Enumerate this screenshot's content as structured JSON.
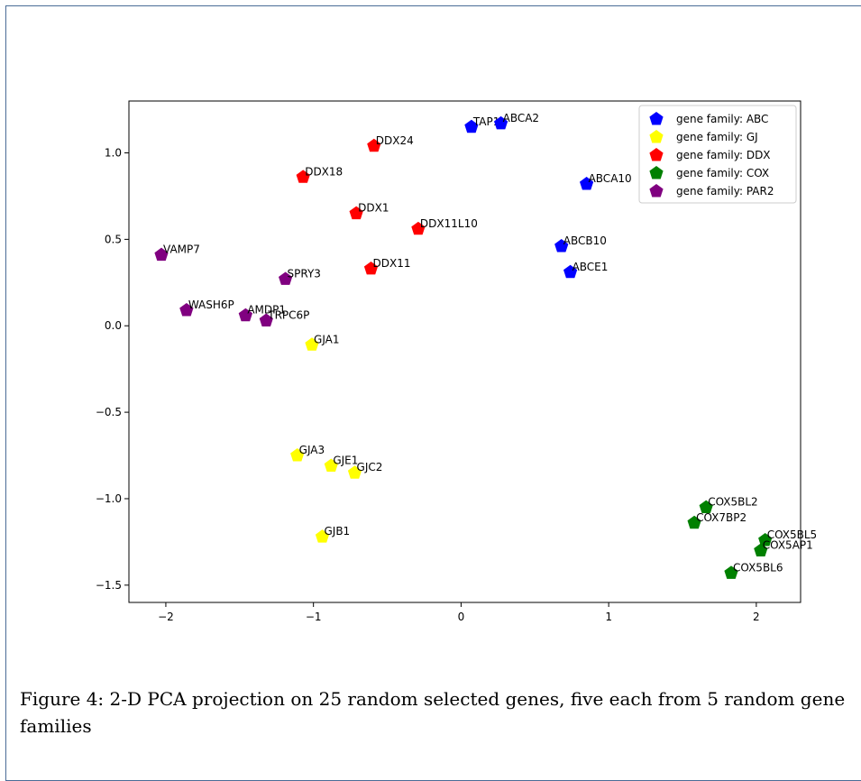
{
  "figure": {
    "caption": "Figure 4: 2-D PCA projection on 25 random selected genes, five each from 5 random gene families"
  },
  "chart_data": {
    "type": "scatter",
    "title": "",
    "xlabel": "",
    "ylabel": "",
    "xlim": [
      -2.25,
      2.3
    ],
    "ylim": [
      -1.6,
      1.3
    ],
    "xticks": [
      -2,
      -1,
      0,
      1,
      2
    ],
    "xtick_labels": [
      "−2",
      "−1",
      "0",
      "1",
      "2"
    ],
    "yticks": [
      -1.5,
      -1.0,
      -0.5,
      0.0,
      0.5,
      1.0
    ],
    "ytick_labels": [
      "−1.5",
      "−1.0",
      "−0.5",
      "0.0",
      "0.5",
      "1.0"
    ],
    "grid": false,
    "legend": "top-right",
    "marker": "pentagon",
    "series": [
      {
        "name": "gene family: ABC",
        "color": "#0000ff",
        "points": [
          {
            "label": "TAP1",
            "x": 0.07,
            "y": 1.15
          },
          {
            "label": "ABCA2",
            "x": 0.27,
            "y": 1.17
          },
          {
            "label": "ABCA10",
            "x": 0.85,
            "y": 0.82
          },
          {
            "label": "ABCB10",
            "x": 0.68,
            "y": 0.46
          },
          {
            "label": "ABCE1",
            "x": 0.74,
            "y": 0.31
          }
        ]
      },
      {
        "name": "gene family: GJ",
        "color": "#ffff00",
        "points": [
          {
            "label": "GJA1",
            "x": -1.01,
            "y": -0.11
          },
          {
            "label": "GJA3",
            "x": -1.11,
            "y": -0.75
          },
          {
            "label": "GJE1",
            "x": -0.88,
            "y": -0.81
          },
          {
            "label": "GJC2",
            "x": -0.72,
            "y": -0.85
          },
          {
            "label": "GJB1",
            "x": -0.94,
            "y": -1.22
          }
        ]
      },
      {
        "name": "gene family: DDX",
        "color": "#ff0000",
        "points": [
          {
            "label": "DDX24",
            "x": -0.59,
            "y": 1.04
          },
          {
            "label": "DDX18",
            "x": -1.07,
            "y": 0.86
          },
          {
            "label": "DDX1",
            "x": -0.71,
            "y": 0.65
          },
          {
            "label": "DDX11L10",
            "x": -0.29,
            "y": 0.56
          },
          {
            "label": "DDX11",
            "x": -0.61,
            "y": 0.33
          }
        ]
      },
      {
        "name": "gene family: COX",
        "color": "#008000",
        "points": [
          {
            "label": "COX5BL2",
            "x": 1.66,
            "y": -1.05
          },
          {
            "label": "COX7BP2",
            "x": 1.58,
            "y": -1.14
          },
          {
            "label": "COX5BL5",
            "x": 2.06,
            "y": -1.24
          },
          {
            "label": "COX5AP1",
            "x": 2.03,
            "y": -1.3
          },
          {
            "label": "COX5BL6",
            "x": 1.83,
            "y": -1.43
          }
        ]
      },
      {
        "name": "gene family: PAR2",
        "color": "#800080",
        "points": [
          {
            "label": "VAMP7",
            "x": -2.03,
            "y": 0.41
          },
          {
            "label": "SPRY3",
            "x": -1.19,
            "y": 0.27
          },
          {
            "label": "WASH6P",
            "x": -1.86,
            "y": 0.09
          },
          {
            "label": "AMDP1",
            "x": -1.46,
            "y": 0.06
          },
          {
            "label": "TRPC6P",
            "x": -1.32,
            "y": 0.03
          }
        ]
      }
    ]
  }
}
